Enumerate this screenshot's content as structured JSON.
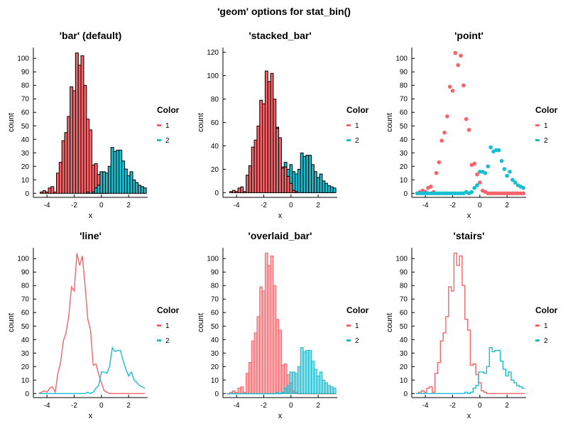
{
  "figure": {
    "suptitle": "'geom' options for stat_bin()",
    "colors": {
      "series1": "#F8636A",
      "series2": "#17BECF",
      "edge": "#000000"
    }
  },
  "chart_data": [
    {
      "type": "bar",
      "geom": "bar",
      "title": "'bar' (default)",
      "xlabel": "x",
      "ylabel": "count",
      "xlim": [
        -5,
        3.4
      ],
      "ylim": [
        -3,
        108
      ],
      "xticks": [
        -4,
        -2,
        0,
        2
      ],
      "yticks": [
        0,
        10,
        20,
        30,
        40,
        50,
        60,
        70,
        80,
        90,
        100
      ],
      "legend": {
        "title": "Color",
        "entries": [
          "1",
          "2"
        ],
        "placement": "right"
      },
      "x": [
        -4.6,
        -4.4,
        -4.2,
        -4.0,
        -3.8,
        -3.6,
        -3.4,
        -3.2,
        -3.0,
        -2.8,
        -2.6,
        -2.4,
        -2.2,
        -2.0,
        -1.8,
        -1.6,
        -1.4,
        -1.2,
        -1.0,
        -0.8,
        -0.6,
        -0.4,
        -0.2,
        0.0,
        0.2,
        0.4,
        0.6,
        0.8,
        1.0,
        1.2,
        1.4,
        1.6,
        1.8,
        2.0,
        2.2,
        2.4,
        2.6,
        2.8,
        3.0,
        3.2
      ],
      "series": [
        {
          "name": "1",
          "values": [
            0,
            1,
            2,
            1,
            4,
            5,
            1,
            15,
            23,
            39,
            45,
            57,
            79,
            76,
            104,
            95,
            102,
            80,
            55,
            47,
            21,
            22,
            14,
            8,
            2,
            1,
            0,
            0,
            0,
            0,
            0,
            0,
            0,
            0,
            0,
            0,
            0,
            0,
            0,
            0
          ]
        },
        {
          "name": "2",
          "values": [
            0,
            0,
            0,
            0,
            0,
            0,
            0,
            0,
            0,
            0,
            0,
            0,
            0,
            0,
            0,
            0,
            0,
            0,
            1,
            0,
            1,
            4,
            6,
            16,
            16,
            15,
            20,
            34,
            31,
            32,
            32,
            24,
            18,
            13,
            16,
            10,
            8,
            6,
            5,
            4
          ]
        }
      ]
    },
    {
      "type": "bar",
      "geom": "stacked_bar",
      "title": "'stacked_bar'",
      "xlabel": "x",
      "ylabel": "count",
      "xlim": [
        -5,
        3.4
      ],
      "ylim": [
        -4,
        124
      ],
      "xticks": [
        -4,
        -2,
        0,
        2
      ],
      "yticks": [
        0,
        20,
        40,
        60,
        80,
        100,
        120
      ],
      "legend": {
        "title": "Color",
        "entries": [
          "1",
          "2"
        ],
        "placement": "right"
      },
      "x": [
        -4.6,
        -4.4,
        -4.2,
        -4.0,
        -3.8,
        -3.6,
        -3.4,
        -3.2,
        -3.0,
        -2.8,
        -2.6,
        -2.4,
        -2.2,
        -2.0,
        -1.8,
        -1.6,
        -1.4,
        -1.2,
        -1.0,
        -0.8,
        -0.6,
        -0.4,
        -0.2,
        0.0,
        0.2,
        0.4,
        0.6,
        0.8,
        1.0,
        1.2,
        1.4,
        1.6,
        1.8,
        2.0,
        2.2,
        2.4,
        2.6,
        2.8,
        3.0,
        3.2
      ],
      "series": [
        {
          "name": "1",
          "values": [
            0,
            1,
            2,
            1,
            4,
            5,
            1,
            15,
            23,
            39,
            45,
            57,
            79,
            76,
            104,
            95,
            102,
            80,
            55,
            47,
            21,
            22,
            14,
            8,
            2,
            1,
            0,
            0,
            0,
            0,
            0,
            0,
            0,
            0,
            0,
            0,
            0,
            0,
            0,
            0
          ]
        },
        {
          "name": "2",
          "values": [
            0,
            0,
            0,
            0,
            0,
            0,
            0,
            0,
            0,
            0,
            0,
            0,
            0,
            0,
            0,
            0,
            0,
            0,
            1,
            0,
            1,
            4,
            6,
            16,
            16,
            15,
            20,
            34,
            31,
            32,
            32,
            24,
            18,
            13,
            16,
            10,
            8,
            6,
            5,
            4
          ]
        }
      ]
    },
    {
      "type": "scatter",
      "geom": "point",
      "title": "'point'",
      "xlabel": "x",
      "ylabel": "count",
      "xlim": [
        -5,
        3.4
      ],
      "ylim": [
        -3,
        108
      ],
      "xticks": [
        -4,
        -2,
        0,
        2
      ],
      "yticks": [
        0,
        10,
        20,
        30,
        40,
        50,
        60,
        70,
        80,
        90,
        100
      ],
      "legend": {
        "title": "Color",
        "entries": [
          "1",
          "2"
        ],
        "placement": "right"
      },
      "x": [
        -4.6,
        -4.4,
        -4.2,
        -4.0,
        -3.8,
        -3.6,
        -3.4,
        -3.2,
        -3.0,
        -2.8,
        -2.6,
        -2.4,
        -2.2,
        -2.0,
        -1.8,
        -1.6,
        -1.4,
        -1.2,
        -1.0,
        -0.8,
        -0.6,
        -0.4,
        -0.2,
        0.0,
        0.2,
        0.4,
        0.6,
        0.8,
        1.0,
        1.2,
        1.4,
        1.6,
        1.8,
        2.0,
        2.2,
        2.4,
        2.6,
        2.8,
        3.0,
        3.2
      ],
      "series": [
        {
          "name": "1",
          "values": [
            0,
            1,
            2,
            1,
            4,
            5,
            1,
            15,
            23,
            39,
            45,
            57,
            79,
            76,
            104,
            95,
            102,
            80,
            55,
            47,
            21,
            22,
            14,
            8,
            2,
            1,
            0,
            0,
            0,
            0,
            0,
            0,
            0,
            0,
            0,
            0,
            0,
            0,
            0,
            0
          ]
        },
        {
          "name": "2",
          "values": [
            0,
            0,
            0,
            0,
            0,
            0,
            0,
            0,
            0,
            0,
            0,
            0,
            0,
            0,
            0,
            0,
            0,
            0,
            1,
            0,
            1,
            4,
            6,
            16,
            16,
            15,
            20,
            34,
            31,
            32,
            32,
            24,
            18,
            13,
            16,
            10,
            8,
            6,
            5,
            4
          ]
        }
      ]
    },
    {
      "type": "line",
      "geom": "line",
      "title": "'line'",
      "xlabel": "x",
      "ylabel": "count",
      "xlim": [
        -5,
        3.4
      ],
      "ylim": [
        -3,
        108
      ],
      "xticks": [
        -4,
        -2,
        0,
        2
      ],
      "yticks": [
        0,
        10,
        20,
        30,
        40,
        50,
        60,
        70,
        80,
        90,
        100
      ],
      "legend": {
        "title": "Color",
        "entries": [
          "1",
          "2"
        ],
        "placement": "right"
      },
      "x": [
        -4.6,
        -4.4,
        -4.2,
        -4.0,
        -3.8,
        -3.6,
        -3.4,
        -3.2,
        -3.0,
        -2.8,
        -2.6,
        -2.4,
        -2.2,
        -2.0,
        -1.8,
        -1.6,
        -1.4,
        -1.2,
        -1.0,
        -0.8,
        -0.6,
        -0.4,
        -0.2,
        0.0,
        0.2,
        0.4,
        0.6,
        0.8,
        1.0,
        1.2,
        1.4,
        1.6,
        1.8,
        2.0,
        2.2,
        2.4,
        2.6,
        2.8,
        3.0,
        3.2
      ],
      "series": [
        {
          "name": "1",
          "values": [
            0,
            1,
            2,
            1,
            4,
            5,
            1,
            15,
            23,
            39,
            45,
            57,
            79,
            76,
            104,
            95,
            102,
            80,
            55,
            47,
            21,
            22,
            14,
            8,
            2,
            1,
            0,
            0,
            0,
            0,
            0,
            0,
            0,
            0,
            0,
            0,
            0,
            0,
            0,
            0
          ]
        },
        {
          "name": "2",
          "values": [
            0,
            0,
            0,
            0,
            0,
            0,
            0,
            0,
            0,
            0,
            0,
            0,
            0,
            0,
            0,
            0,
            0,
            0,
            1,
            0,
            1,
            4,
            6,
            16,
            16,
            15,
            20,
            34,
            31,
            32,
            32,
            24,
            18,
            13,
            16,
            10,
            8,
            6,
            5,
            4
          ]
        }
      ]
    },
    {
      "type": "bar",
      "geom": "overlaid_bar",
      "title": "'overlaid_bar'",
      "xlabel": "x",
      "ylabel": "count",
      "xlim": [
        -5,
        3.4
      ],
      "ylim": [
        -3,
        108
      ],
      "xticks": [
        -4,
        -2,
        0,
        2
      ],
      "yticks": [
        0,
        10,
        20,
        30,
        40,
        50,
        60,
        70,
        80,
        90,
        100
      ],
      "legend": {
        "title": "Color",
        "entries": [
          "1",
          "2"
        ],
        "placement": "right"
      },
      "x": [
        -4.6,
        -4.4,
        -4.2,
        -4.0,
        -3.8,
        -3.6,
        -3.4,
        -3.2,
        -3.0,
        -2.8,
        -2.6,
        -2.4,
        -2.2,
        -2.0,
        -1.8,
        -1.6,
        -1.4,
        -1.2,
        -1.0,
        -0.8,
        -0.6,
        -0.4,
        -0.2,
        0.0,
        0.2,
        0.4,
        0.6,
        0.8,
        1.0,
        1.2,
        1.4,
        1.6,
        1.8,
        2.0,
        2.2,
        2.4,
        2.6,
        2.8,
        3.0,
        3.2
      ],
      "series": [
        {
          "name": "1",
          "values": [
            0,
            1,
            2,
            1,
            4,
            5,
            1,
            15,
            23,
            39,
            45,
            57,
            79,
            76,
            104,
            95,
            102,
            80,
            55,
            47,
            21,
            22,
            14,
            8,
            2,
            1,
            0,
            0,
            0,
            0,
            0,
            0,
            0,
            0,
            0,
            0,
            0,
            0,
            0,
            0
          ]
        },
        {
          "name": "2",
          "values": [
            0,
            0,
            0,
            0,
            0,
            0,
            0,
            0,
            0,
            0,
            0,
            0,
            0,
            0,
            0,
            0,
            0,
            0,
            1,
            0,
            1,
            4,
            6,
            16,
            16,
            15,
            20,
            34,
            31,
            32,
            32,
            24,
            18,
            13,
            16,
            10,
            8,
            6,
            5,
            4
          ]
        }
      ]
    },
    {
      "type": "line",
      "geom": "stairs",
      "title": "'stairs'",
      "xlabel": "x",
      "ylabel": "count",
      "xlim": [
        -5,
        3.4
      ],
      "ylim": [
        -3,
        108
      ],
      "xticks": [
        -4,
        -2,
        0,
        2
      ],
      "yticks": [
        0,
        10,
        20,
        30,
        40,
        50,
        60,
        70,
        80,
        90,
        100
      ],
      "legend": {
        "title": "Color",
        "entries": [
          "1",
          "2"
        ],
        "placement": "right"
      },
      "x": [
        -4.6,
        -4.4,
        -4.2,
        -4.0,
        -3.8,
        -3.6,
        -3.4,
        -3.2,
        -3.0,
        -2.8,
        -2.6,
        -2.4,
        -2.2,
        -2.0,
        -1.8,
        -1.6,
        -1.4,
        -1.2,
        -1.0,
        -0.8,
        -0.6,
        -0.4,
        -0.2,
        0.0,
        0.2,
        0.4,
        0.6,
        0.8,
        1.0,
        1.2,
        1.4,
        1.6,
        1.8,
        2.0,
        2.2,
        2.4,
        2.6,
        2.8,
        3.0,
        3.2
      ],
      "series": [
        {
          "name": "1",
          "values": [
            0,
            1,
            2,
            1,
            4,
            5,
            1,
            15,
            23,
            39,
            45,
            57,
            79,
            76,
            104,
            95,
            102,
            80,
            55,
            47,
            21,
            22,
            14,
            8,
            2,
            1,
            0,
            0,
            0,
            0,
            0,
            0,
            0,
            0,
            0,
            0,
            0,
            0,
            0,
            0
          ]
        },
        {
          "name": "2",
          "values": [
            0,
            0,
            0,
            0,
            0,
            0,
            0,
            0,
            0,
            0,
            0,
            0,
            0,
            0,
            0,
            0,
            0,
            0,
            1,
            0,
            1,
            4,
            6,
            16,
            16,
            15,
            20,
            34,
            31,
            32,
            32,
            24,
            18,
            13,
            16,
            10,
            8,
            6,
            5,
            4
          ]
        }
      ]
    }
  ]
}
